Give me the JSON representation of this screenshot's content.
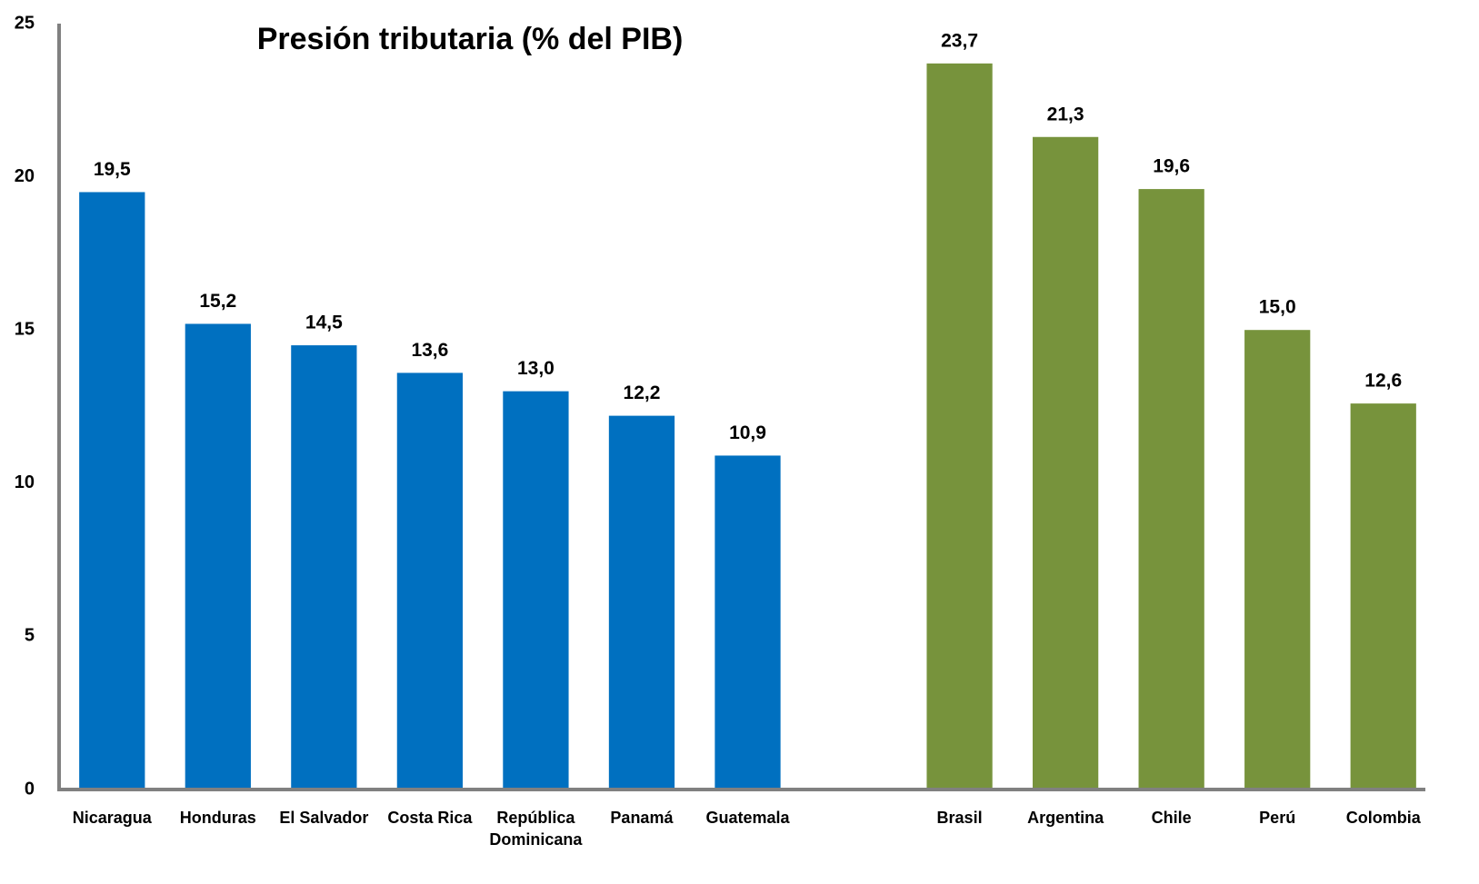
{
  "chart_data": {
    "type": "bar",
    "title": "Presión tributaria (% del PIB)",
    "categories": [
      "Nicaragua",
      "Honduras",
      "El Salvador",
      "Costa Rica",
      "República Dominicana",
      "Panamá",
      "Guatemala",
      null,
      "Brasil",
      "Argentina",
      "Chile",
      "Perú",
      "Colombia"
    ],
    "values": [
      19.5,
      15.2,
      14.5,
      13.6,
      13.0,
      12.2,
      10.9,
      null,
      23.7,
      21.3,
      19.6,
      15.0,
      12.6
    ],
    "value_labels": [
      "19,5",
      "15,2",
      "14,5",
      "13,6",
      "13,0",
      "12,2",
      "10,9",
      null,
      "23,7",
      "21,3",
      "19,6",
      "15,0",
      "12,6"
    ],
    "colors": [
      "#0070c0",
      "#0070c0",
      "#0070c0",
      "#0070c0",
      "#0070c0",
      "#0070c0",
      "#0070c0",
      null,
      "#77933c",
      "#77933c",
      "#77933c",
      "#77933c",
      "#77933c"
    ],
    "ylim": [
      0,
      25
    ],
    "yticks": [
      0,
      5,
      10,
      15,
      20,
      25
    ],
    "grid": false
  }
}
